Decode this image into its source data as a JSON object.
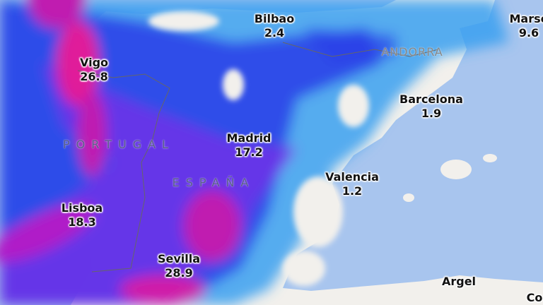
{
  "map": {
    "colors": {
      "sea": "#a8c5ee",
      "land": "#f2f0ec",
      "light_rain": "#3aa0f0",
      "moderate_rain": "#2a3ee8",
      "heavy_rain": "#9a1ee0",
      "extreme_rain": "#e01a9a"
    },
    "countries": [
      {
        "name": "PORTUGAL"
      },
      {
        "name": "ESPAÑA"
      },
      {
        "name": "ANDORRA"
      }
    ],
    "cities": [
      {
        "name": "Bilbao",
        "value": "2.4"
      },
      {
        "name": "Marse",
        "value": "9.6"
      },
      {
        "name": "Vigo",
        "value": "26.8"
      },
      {
        "name": "Barcelona",
        "value": "1.9"
      },
      {
        "name": "Madrid",
        "value": "17.2"
      },
      {
        "name": "Valencia",
        "value": "1.2"
      },
      {
        "name": "Lisboa",
        "value": "18.3"
      },
      {
        "name": "Sevilla",
        "value": "28.9"
      },
      {
        "name": "Argel",
        "value": ""
      },
      {
        "name": "Co",
        "value": ""
      }
    ]
  }
}
